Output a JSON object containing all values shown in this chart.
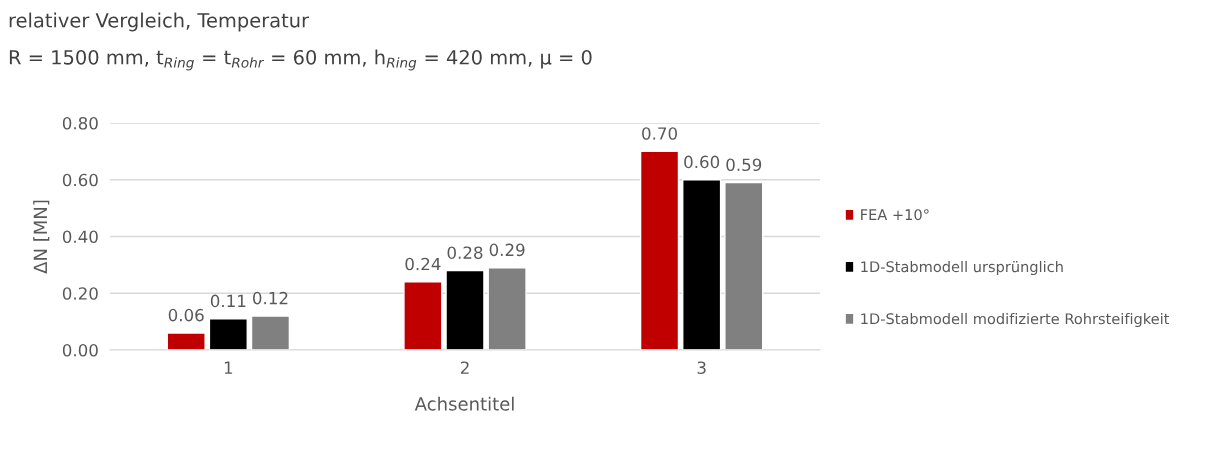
{
  "chart_data": {
    "type": "bar",
    "title": "relativer Vergleich, Temperatur",
    "subtitle": "R = 1500 mm, t$_{Ring}$ = t$_{Rohr}$ = 60 mm, h$_{Ring}$ = 420 mm, μ = 0",
    "xlabel": "Achsentitel",
    "ylabel": "ΔN [MN]",
    "categories": [
      "1",
      "2",
      "3"
    ],
    "series": [
      {
        "name": "FEA +10°",
        "color": "#c00000",
        "values": [
          0.06,
          0.24,
          0.7
        ],
        "value_labels": [
          "0.06",
          "0.24",
          "0.70"
        ]
      },
      {
        "name": "1D-Stabmodell ursprünglich",
        "color": "#000000",
        "values": [
          0.11,
          0.28,
          0.6
        ],
        "value_labels": [
          "0.11",
          "0.28",
          "0.60"
        ]
      },
      {
        "name": "1D-Stabmodell modifizierte Rohrsteifigkeit",
        "color": "#808080",
        "values": [
          0.12,
          0.29,
          0.59
        ],
        "value_labels": [
          "0.12",
          "0.29",
          "0.59"
        ]
      }
    ],
    "ylim": [
      0,
      0.8
    ],
    "yticks": [
      {
        "value": 0,
        "label": "0.00"
      },
      {
        "value": 0.2,
        "label": "0.20"
      },
      {
        "value": 0.4,
        "label": "0.40"
      },
      {
        "value": 0.6,
        "label": "0.60"
      },
      {
        "value": 0.8,
        "label": "0.80"
      }
    ],
    "grid": "y",
    "legend": "right"
  }
}
